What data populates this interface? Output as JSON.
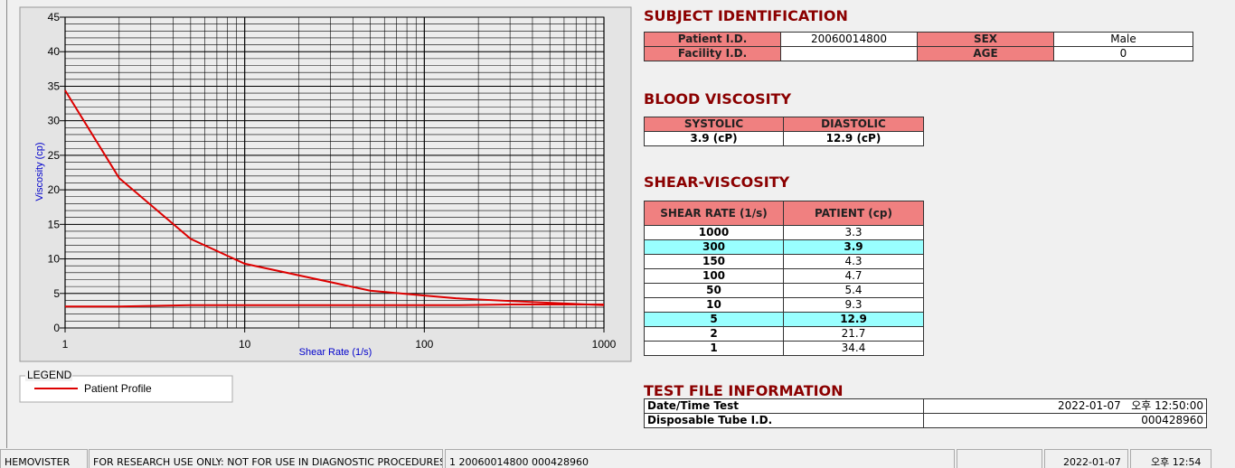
{
  "chart_data": {
    "type": "line",
    "x_label": "Shear Rate (1/s)",
    "y_label": "Viscosity (cp)",
    "log_x": true,
    "grid": true,
    "x": [
      1,
      2,
      5,
      10,
      50,
      100,
      150,
      300,
      1000
    ],
    "series": [
      {
        "name": "Patient Profile",
        "color": "#dd0000",
        "values": [
          34.4,
          21.7,
          12.9,
          9.3,
          5.4,
          4.7,
          4.3,
          3.9,
          3.3
        ]
      },
      {
        "color": "#dd0000",
        "values": [
          3.1,
          3.1,
          3.3,
          3.3,
          3.3,
          3.3,
          3.3,
          3.4,
          3.4
        ]
      }
    ],
    "xlim": [
      1,
      1000
    ],
    "xticks": [
      1,
      10,
      100,
      1000
    ],
    "ylim": [
      0,
      45
    ],
    "yticks": [
      0,
      5,
      10,
      15,
      20,
      25,
      30,
      35,
      40,
      45
    ],
    "legend_title": "LEGEND"
  },
  "subject_identification": {
    "title": "SUBJECT IDENTIFICATION",
    "patient_id_label": "Patient I.D.",
    "patient_id": "20060014800",
    "sex_label": "SEX",
    "sex": "Male",
    "facility_id_label": "Facility I.D.",
    "age_label": "AGE",
    "age": 0
  },
  "blood_viscosity": {
    "title": "BLOOD VISCOSITY",
    "headers": [
      "SYSTOLIC",
      "DIASTOLIC"
    ],
    "values": [
      "3.9 (cP)",
      "12.9 (cP)"
    ]
  },
  "shear_viscosity": {
    "title": "SHEAR-VISCOSITY",
    "headers": [
      "SHEAR RATE (1/s)",
      "PATIENT (cp)"
    ],
    "rows": [
      [
        1000,
        3.3
      ],
      [
        300,
        3.9
      ],
      [
        150,
        4.3
      ],
      [
        100,
        4.7
      ],
      [
        50,
        5.4
      ],
      [
        10,
        9.3
      ],
      [
        5,
        12.9
      ],
      [
        2,
        21.7
      ],
      [
        1,
        34.4
      ]
    ],
    "highlighted_rows": [
      1,
      6
    ]
  },
  "test_file_information": {
    "title": "TEST FILE INFORMATION",
    "rows": [
      [
        "Date/Time Test",
        "2022-01-07   오후 12:50:00"
      ],
      [
        "Disposable Tube I.D.",
        "000428960"
      ]
    ]
  },
  "status_bar": [
    "HEMOVISTER",
    "FOR RESEARCH USE ONLY: NOT FOR USE IN DIAGNOSTIC PROCEDURES",
    "1  20060014800  000428960",
    "2022-01-07",
    "오후 12:54"
  ]
}
